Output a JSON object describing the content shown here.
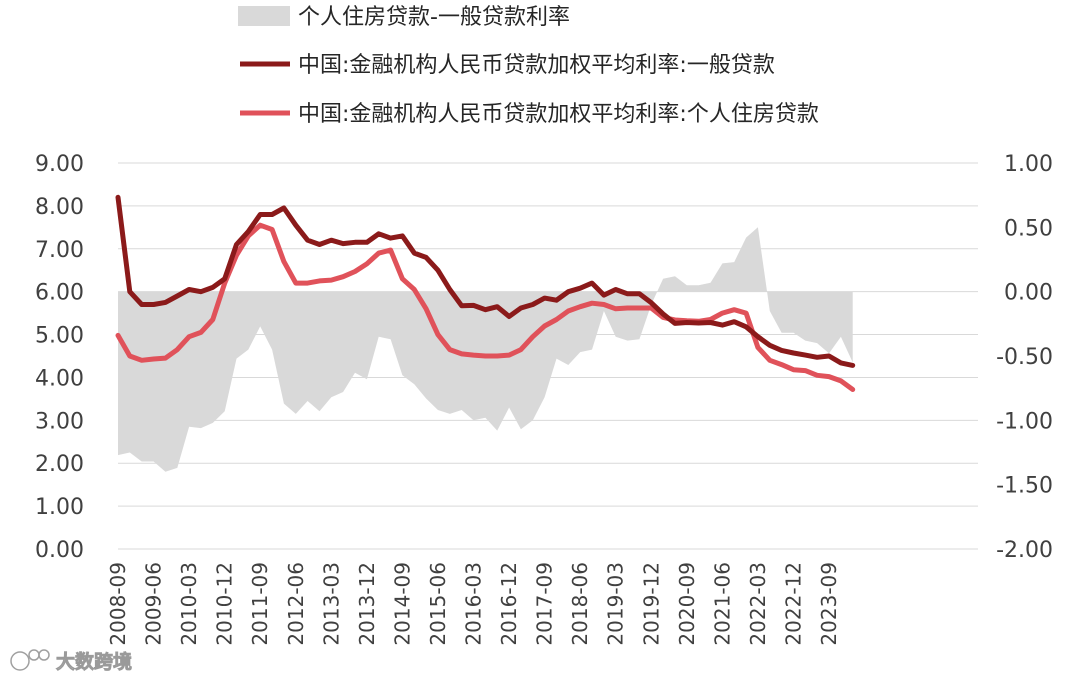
{
  "chart_data": {
    "type": "line",
    "dual_axis": true,
    "title": "",
    "legend": {
      "placement": "top",
      "entries": [
        {
          "label": "个人住房贷款-一般贷款利率",
          "kind": "area",
          "axis": "right",
          "color": "#d9d9d9"
        },
        {
          "label": "中国:金融机构人民币贷款加权平均利率:一般贷款",
          "kind": "line",
          "axis": "left",
          "color": "#8b1a1a"
        },
        {
          "label": "中国:金融机构人民币贷款加权平均利率:个人住房贷款",
          "kind": "line",
          "axis": "left",
          "color": "#e0525a"
        }
      ]
    },
    "left_axis": {
      "min": 0,
      "max": 9,
      "ticks": [
        "0.00",
        "1.00",
        "2.00",
        "3.00",
        "4.00",
        "5.00",
        "6.00",
        "7.00",
        "8.00",
        "9.00"
      ]
    },
    "right_axis": {
      "min": -2,
      "max": 1,
      "ticks": [
        "-2.00",
        "-1.50",
        "-1.00",
        "-0.50",
        "0.00",
        "0.50",
        "1.00"
      ]
    },
    "x_tick_labels": [
      "2008-09",
      "2009-06",
      "2010-03",
      "2010-12",
      "2011-09",
      "2012-06",
      "2013-03",
      "2013-12",
      "2014-09",
      "2015-06",
      "2016-03",
      "2016-12",
      "2017-09",
      "2018-06",
      "2019-03",
      "2019-12",
      "2020-09",
      "2021-06",
      "2022-03",
      "2022-12",
      "2023-09"
    ],
    "x_range": [
      "2008-09",
      "2023-12"
    ],
    "series": [
      {
        "name": "中国:金融机构人民币贷款加权平均利率:一般贷款",
        "axis": "left",
        "points": [
          [
            "2008-09",
            8.2
          ],
          [
            "2008-12",
            6.0
          ],
          [
            "2009-03",
            5.7
          ],
          [
            "2009-06",
            5.7
          ],
          [
            "2009-09",
            5.75
          ],
          [
            "2009-12",
            5.9
          ],
          [
            "2010-03",
            6.05
          ],
          [
            "2010-06",
            6.0
          ],
          [
            "2010-09",
            6.1
          ],
          [
            "2010-12",
            6.3
          ],
          [
            "2011-03",
            7.1
          ],
          [
            "2011-06",
            7.4
          ],
          [
            "2011-09",
            7.8
          ],
          [
            "2011-12",
            7.8
          ],
          [
            "2012-03",
            7.95
          ],
          [
            "2012-06",
            7.55
          ],
          [
            "2012-09",
            7.2
          ],
          [
            "2012-12",
            7.1
          ],
          [
            "2013-03",
            7.2
          ],
          [
            "2013-06",
            7.12
          ],
          [
            "2013-09",
            7.15
          ],
          [
            "2013-12",
            7.15
          ],
          [
            "2014-03",
            7.35
          ],
          [
            "2014-06",
            7.25
          ],
          [
            "2014-09",
            7.3
          ],
          [
            "2014-12",
            6.9
          ],
          [
            "2015-03",
            6.8
          ],
          [
            "2015-06",
            6.5
          ],
          [
            "2015-09",
            6.05
          ],
          [
            "2015-12",
            5.67
          ],
          [
            "2016-03",
            5.68
          ],
          [
            "2016-06",
            5.58
          ],
          [
            "2016-09",
            5.65
          ],
          [
            "2016-12",
            5.42
          ],
          [
            "2017-03",
            5.62
          ],
          [
            "2017-06",
            5.7
          ],
          [
            "2017-09",
            5.85
          ],
          [
            "2017-12",
            5.8
          ],
          [
            "2018-03",
            6.0
          ],
          [
            "2018-06",
            6.08
          ],
          [
            "2018-09",
            6.2
          ],
          [
            "2018-12",
            5.92
          ],
          [
            "2019-03",
            6.05
          ],
          [
            "2019-06",
            5.95
          ],
          [
            "2019-09",
            5.95
          ],
          [
            "2019-12",
            5.74
          ],
          [
            "2020-03",
            5.48
          ],
          [
            "2020-06",
            5.26
          ],
          [
            "2020-09",
            5.28
          ],
          [
            "2020-12",
            5.27
          ],
          [
            "2021-03",
            5.28
          ],
          [
            "2021-06",
            5.22
          ],
          [
            "2021-09",
            5.3
          ],
          [
            "2021-12",
            5.18
          ],
          [
            "2022-03",
            4.95
          ],
          [
            "2022-06",
            4.75
          ],
          [
            "2022-09",
            4.63
          ],
          [
            "2022-12",
            4.57
          ],
          [
            "2023-03",
            4.52
          ],
          [
            "2023-06",
            4.47
          ],
          [
            "2023-09",
            4.5
          ],
          [
            "2023-12",
            4.34
          ],
          [
            "2024-03",
            4.28
          ]
        ]
      },
      {
        "name": "中国:金融机构人民币贷款加权平均利率:个人住房贷款",
        "axis": "left",
        "points": [
          [
            "2008-09",
            4.98
          ],
          [
            "2008-12",
            4.5
          ],
          [
            "2009-03",
            4.4
          ],
          [
            "2009-06",
            4.43
          ],
          [
            "2009-09",
            4.45
          ],
          [
            "2009-12",
            4.65
          ],
          [
            "2010-03",
            4.95
          ],
          [
            "2010-06",
            5.05
          ],
          [
            "2010-09",
            5.35
          ],
          [
            "2010-12",
            6.2
          ],
          [
            "2011-03",
            6.85
          ],
          [
            "2011-06",
            7.3
          ],
          [
            "2011-09",
            7.55
          ],
          [
            "2011-12",
            7.45
          ],
          [
            "2012-03",
            6.7
          ],
          [
            "2012-06",
            6.2
          ],
          [
            "2012-09",
            6.2
          ],
          [
            "2012-12",
            6.25
          ],
          [
            "2013-03",
            6.27
          ],
          [
            "2013-06",
            6.35
          ],
          [
            "2013-09",
            6.47
          ],
          [
            "2013-12",
            6.65
          ],
          [
            "2014-03",
            6.9
          ],
          [
            "2014-06",
            6.97
          ],
          [
            "2014-09",
            6.3
          ],
          [
            "2014-12",
            6.05
          ],
          [
            "2015-03",
            5.6
          ],
          [
            "2015-06",
            5.0
          ],
          [
            "2015-09",
            4.65
          ],
          [
            "2015-12",
            4.55
          ],
          [
            "2016-03",
            4.52
          ],
          [
            "2016-06",
            4.5
          ],
          [
            "2016-09",
            4.5
          ],
          [
            "2016-12",
            4.52
          ],
          [
            "2017-03",
            4.65
          ],
          [
            "2017-06",
            4.95
          ],
          [
            "2017-09",
            5.2
          ],
          [
            "2017-12",
            5.35
          ],
          [
            "2018-03",
            5.55
          ],
          [
            "2018-06",
            5.65
          ],
          [
            "2018-09",
            5.73
          ],
          [
            "2018-12",
            5.7
          ],
          [
            "2019-03",
            5.6
          ],
          [
            "2019-06",
            5.62
          ],
          [
            "2019-09",
            5.62
          ],
          [
            "2019-12",
            5.62
          ],
          [
            "2020-03",
            5.4
          ],
          [
            "2020-06",
            5.34
          ],
          [
            "2020-09",
            5.32
          ],
          [
            "2020-12",
            5.31
          ],
          [
            "2021-03",
            5.35
          ],
          [
            "2021-06",
            5.5
          ],
          [
            "2021-09",
            5.58
          ],
          [
            "2021-12",
            5.5
          ],
          [
            "2022-03",
            4.7
          ],
          [
            "2022-06",
            4.4
          ],
          [
            "2022-09",
            4.3
          ],
          [
            "2022-12",
            4.18
          ],
          [
            "2023-03",
            4.16
          ],
          [
            "2023-06",
            4.05
          ],
          [
            "2023-09",
            4.02
          ],
          [
            "2023-12",
            3.92
          ],
          [
            "2024-03",
            3.72
          ]
        ]
      },
      {
        "name": "个人住房贷款-一般贷款利率",
        "axis": "right",
        "points": [
          [
            "2008-09",
            -1.27
          ],
          [
            "2008-12",
            -1.25
          ],
          [
            "2009-03",
            -1.32
          ],
          [
            "2009-06",
            -1.32
          ],
          [
            "2009-09",
            -1.4
          ],
          [
            "2009-12",
            -1.37
          ],
          [
            "2010-03",
            -1.05
          ],
          [
            "2010-06",
            -1.06
          ],
          [
            "2010-09",
            -1.02
          ],
          [
            "2010-12",
            -0.93
          ],
          [
            "2011-03",
            -0.52
          ],
          [
            "2011-06",
            -0.45
          ],
          [
            "2011-09",
            -0.27
          ],
          [
            "2011-12",
            -0.45
          ],
          [
            "2012-03",
            -0.87
          ],
          [
            "2012-06",
            -0.95
          ],
          [
            "2012-09",
            -0.85
          ],
          [
            "2012-12",
            -0.93
          ],
          [
            "2013-03",
            -0.82
          ],
          [
            "2013-06",
            -0.78
          ],
          [
            "2013-09",
            -0.63
          ],
          [
            "2013-12",
            -0.68
          ],
          [
            "2014-03",
            -0.35
          ],
          [
            "2014-06",
            -0.37
          ],
          [
            "2014-09",
            -0.65
          ],
          [
            "2014-12",
            -0.72
          ],
          [
            "2015-03",
            -0.83
          ],
          [
            "2015-06",
            -0.92
          ],
          [
            "2015-09",
            -0.95
          ],
          [
            "2015-12",
            -0.92
          ],
          [
            "2016-03",
            -1.0
          ],
          [
            "2016-06",
            -0.98
          ],
          [
            "2016-09",
            -1.08
          ],
          [
            "2016-12",
            -0.9
          ],
          [
            "2017-03",
            -1.07
          ],
          [
            "2017-06",
            -1.0
          ],
          [
            "2017-09",
            -0.82
          ],
          [
            "2017-12",
            -0.52
          ],
          [
            "2018-03",
            -0.57
          ],
          [
            "2018-06",
            -0.47
          ],
          [
            "2018-09",
            -0.45
          ],
          [
            "2018-12",
            -0.15
          ],
          [
            "2019-03",
            -0.35
          ],
          [
            "2019-06",
            -0.38
          ],
          [
            "2019-09",
            -0.37
          ],
          [
            "2019-12",
            -0.1
          ],
          [
            "2020-03",
            0.1
          ],
          [
            "2020-06",
            0.12
          ],
          [
            "2020-09",
            0.05
          ],
          [
            "2020-12",
            0.05
          ],
          [
            "2021-03",
            0.07
          ],
          [
            "2021-06",
            0.22
          ],
          [
            "2021-09",
            0.23
          ],
          [
            "2021-12",
            0.42
          ],
          [
            "2022-03",
            0.5
          ],
          [
            "2022-06",
            -0.15
          ],
          [
            "2022-09",
            -0.32
          ],
          [
            "2022-12",
            -0.32
          ],
          [
            "2023-03",
            -0.38
          ],
          [
            "2023-06",
            -0.4
          ],
          [
            "2023-09",
            -0.48
          ],
          [
            "2023-12",
            -0.35
          ],
          [
            "2024-03",
            -0.55
          ]
        ]
      }
    ]
  },
  "watermark": {
    "text": "大数跨境",
    "icon": "logo-mark-icon"
  }
}
